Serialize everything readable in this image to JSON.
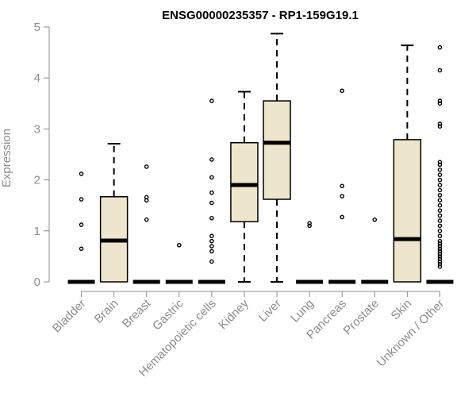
{
  "chart_data": {
    "type": "boxplot",
    "title": "ENSG00000235357 - RP1-159G19.1",
    "xlabel": "",
    "ylabel": "Expression",
    "ylim": [
      0,
      5
    ],
    "yticks": [
      0,
      1,
      2,
      3,
      4,
      5
    ],
    "box_color": "#ede6cc",
    "stroke_color": "#000000",
    "axis_color": "#8c8c8c",
    "categories": [
      "Bladder",
      "Brain",
      "Breast",
      "Gastric",
      "Hematopoietic cells",
      "Kidney",
      "Liver",
      "Lung",
      "Pancreas",
      "Prostate",
      "Skin",
      "Unknown / Other"
    ],
    "boxes": [
      {
        "name": "Bladder",
        "whisker_low": 0,
        "q1": 0,
        "median": 0,
        "q3": 0,
        "whisker_high": 0,
        "outliers": [
          0.65,
          1.12,
          1.62,
          2.12
        ]
      },
      {
        "name": "Brain",
        "whisker_low": 0,
        "q1": 0,
        "median": 0.81,
        "q3": 1.67,
        "whisker_high": 2.71,
        "outliers": []
      },
      {
        "name": "Breast",
        "whisker_low": 0,
        "q1": 0,
        "median": 0,
        "q3": 0,
        "whisker_high": 0,
        "outliers": [
          1.22,
          1.6,
          1.66,
          2.26
        ]
      },
      {
        "name": "Gastric",
        "whisker_low": 0,
        "q1": 0,
        "median": 0,
        "q3": 0,
        "whisker_high": 0,
        "outliers": [
          0.72
        ]
      },
      {
        "name": "Hematopoietic cells",
        "whisker_low": 0,
        "q1": 0,
        "median": 0,
        "q3": 0,
        "whisker_high": 0,
        "outliers": [
          0.4,
          0.6,
          0.7,
          0.8,
          0.9,
          1.25,
          1.55,
          1.75,
          2.05,
          2.4,
          3.55
        ]
      },
      {
        "name": "Kidney",
        "whisker_low": 0,
        "q1": 1.18,
        "median": 1.9,
        "q3": 2.73,
        "whisker_high": 3.73,
        "outliers": []
      },
      {
        "name": "Liver",
        "whisker_low": 0,
        "q1": 1.62,
        "median": 2.73,
        "q3": 3.55,
        "whisker_high": 4.87,
        "outliers": []
      },
      {
        "name": "Lung",
        "whisker_low": 0,
        "q1": 0,
        "median": 0,
        "q3": 0,
        "whisker_high": 0,
        "outliers": [
          1.1,
          1.15
        ]
      },
      {
        "name": "Pancreas",
        "whisker_low": 0,
        "q1": 0,
        "median": 0,
        "q3": 0,
        "whisker_high": 0,
        "outliers": [
          1.27,
          1.68,
          1.88,
          3.75
        ]
      },
      {
        "name": "Prostate",
        "whisker_low": 0,
        "q1": 0,
        "median": 0,
        "q3": 0,
        "whisker_high": 0,
        "outliers": [
          1.22
        ]
      },
      {
        "name": "Skin",
        "whisker_low": 0,
        "q1": 0,
        "median": 0.84,
        "q3": 2.79,
        "whisker_high": 4.64,
        "outliers": []
      },
      {
        "name": "Unknown / Other",
        "whisker_low": 0,
        "q1": 0,
        "median": 0,
        "q3": 0,
        "whisker_high": 0,
        "outliers": [
          0.3,
          0.35,
          0.4,
          0.45,
          0.5,
          0.55,
          0.6,
          0.65,
          0.7,
          0.75,
          0.8,
          0.9,
          1.0,
          1.1,
          1.2,
          1.3,
          1.4,
          1.5,
          1.6,
          1.7,
          1.8,
          1.9,
          2.0,
          2.1,
          2.2,
          2.3,
          2.35,
          3.05,
          3.1,
          3.5,
          3.55,
          4.15,
          4.6
        ]
      }
    ]
  }
}
